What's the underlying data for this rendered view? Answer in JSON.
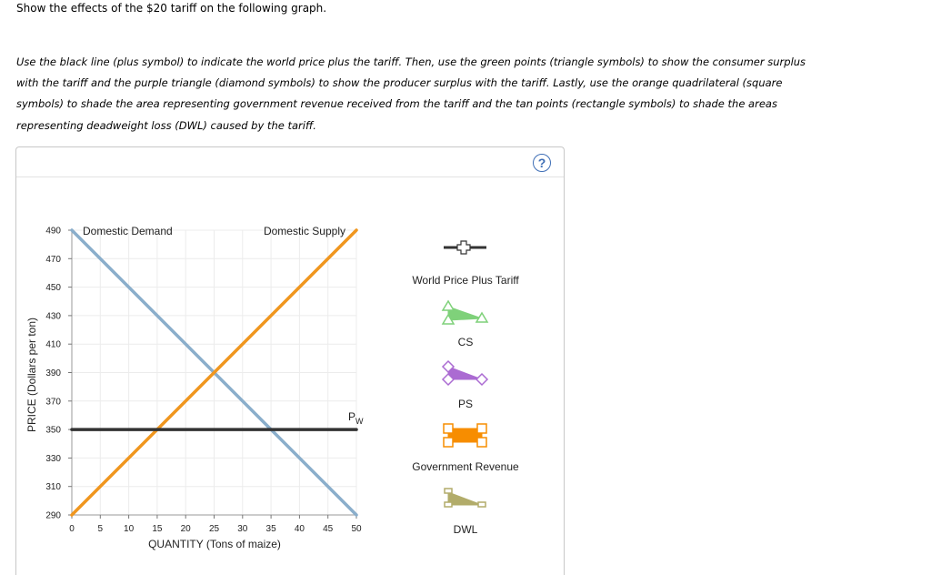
{
  "instruction": "Show the effects of the $20 tariff on the following graph.",
  "paragraph_lines": [
    "Use the black line (plus symbol) to indicate the world price plus the tariff. Then, use the green points (triangle symbols) to show the consumer surplus",
    "with the tariff and the purple triangle (diamond symbols) to show the producer surplus with the tariff. Lastly, use the orange quadrilateral (square",
    "symbols) to shade the area representing government revenue received from the tariff and the tan points (rectangle symbols) to shade the areas",
    "representing deadweight loss (DWL) caused by the tariff."
  ],
  "help_label": "?",
  "legend": {
    "world_price_plus_tariff": "World Price Plus Tariff",
    "cs": "CS",
    "ps": "PS",
    "government_revenue": "Government Revenue",
    "dwl": "DWL"
  },
  "colors": {
    "demand": "#8aaecb",
    "supply": "#f0961e",
    "world_price": "#333333",
    "cs": "#7fd17a",
    "ps": "#ab6bd2",
    "revenue": "#f78d00",
    "dwl": "#b2ac6a"
  },
  "chart_data": {
    "type": "line",
    "xlabel": "QUANTITY (Tons of maize)",
    "ylabel": "PRICE (Dollars per ton)",
    "xlim": [
      0,
      50
    ],
    "ylim": [
      290,
      490
    ],
    "x_ticks": [
      0,
      5,
      10,
      15,
      20,
      25,
      30,
      35,
      40,
      45,
      50
    ],
    "y_ticks": [
      290,
      310,
      330,
      350,
      370,
      390,
      410,
      430,
      450,
      470,
      490
    ],
    "grid": true,
    "series": [
      {
        "name": "Domestic Demand",
        "x": [
          0,
          50
        ],
        "y": [
          490,
          290
        ]
      },
      {
        "name": "Domestic Supply",
        "x": [
          0,
          50
        ],
        "y": [
          290,
          490
        ]
      },
      {
        "name": "P",
        "subscript": "W",
        "x": [
          0,
          50
        ],
        "y": [
          350,
          350
        ]
      }
    ]
  }
}
